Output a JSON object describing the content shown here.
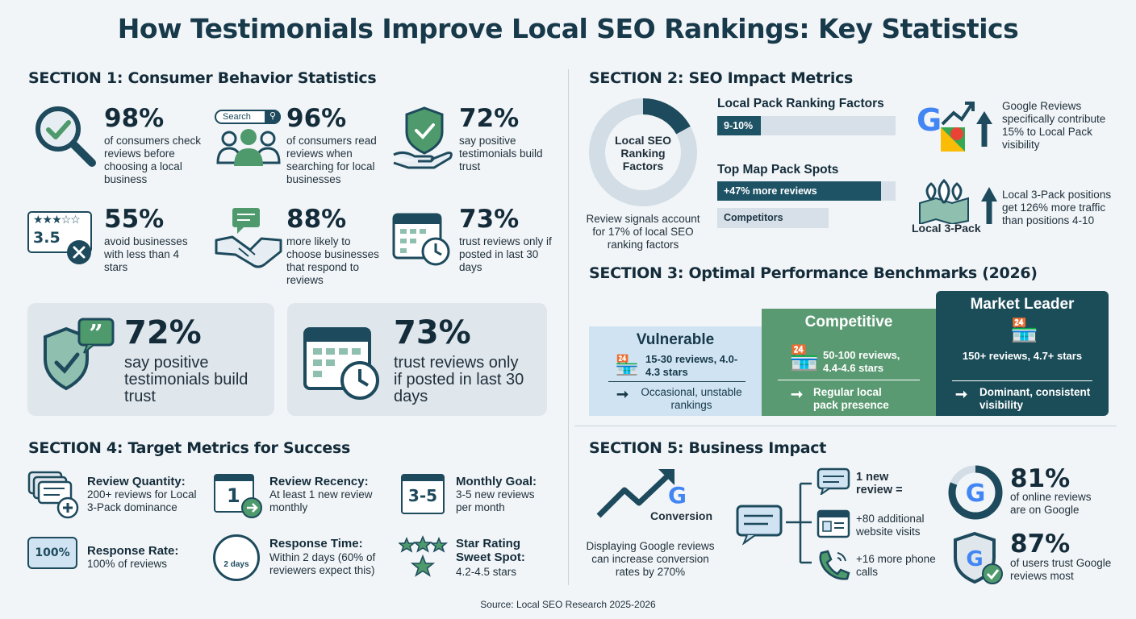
{
  "title": "How Testimonials Improve Local SEO Rankings: Key Statistics",
  "section1": {
    "heading": "SECTION 1: Consumer Behavior Statistics",
    "search_label": "Search",
    "rating_label": "3.5",
    "stats": [
      {
        "value": "98%",
        "desc": "of consumers check reviews before choosing a local business"
      },
      {
        "value": "96%",
        "desc": "of consumers read reviews when searching for local businesses"
      },
      {
        "value": "72%",
        "desc": "say positive testimonials build trust"
      },
      {
        "value": "55%",
        "desc": "avoid businesses with less than 4 stars"
      },
      {
        "value": "88%",
        "desc": "more likely to choose businesses that respond to reviews"
      },
      {
        "value": "73%",
        "desc": "trust reviews only if posted in last 30 days"
      }
    ],
    "cards": [
      {
        "value": "72%",
        "desc": "say positive testimonials build trust"
      },
      {
        "value": "73%",
        "desc": "trust reviews only if posted in last 30 days"
      }
    ]
  },
  "section2": {
    "heading": "SECTION 2: SEO Impact Metrics",
    "donut_label": "Local SEO Ranking Factors",
    "donut_fraction": 0.17,
    "donut_caption": "Review signals account for 17% of local SEO ranking factors",
    "local_pack_title": "Local Pack Ranking Factors",
    "local_pack_bar": {
      "label": "9-10%",
      "fraction": 0.1
    },
    "map_pack_title": "Top Map Pack Spots",
    "map_pack_bars": [
      {
        "label": "+47% more reviews",
        "fraction": 1.47
      },
      {
        "label": "Competitors",
        "fraction": 1.0
      }
    ],
    "google_reviews_text": "Google Reviews specifically contribute 15% to Local Pack visibility",
    "local3pack_label": "Local 3-Pack",
    "local3pack_text": "Local 3-Pack positions get 126% more traffic than positions 4-10"
  },
  "section3": {
    "heading": "SECTION 3: Optimal Performance Benchmarks (2026)",
    "tiers": [
      {
        "name": "Vulnerable",
        "detail": "15-30 reviews, 4.0-4.3 stars",
        "result": "Occasional, unstable rankings",
        "color": "#cfe3f2"
      },
      {
        "name": "Competitive",
        "detail": "50-100 reviews, 4.4-4.6 stars",
        "result": "Regular local pack presence",
        "color": "#5a9a72"
      },
      {
        "name": "Market Leader",
        "detail": "150+ reviews, 4.7+ stars",
        "result": "Dominant, consistent visibility",
        "color": "#1b4d59"
      }
    ]
  },
  "section4": {
    "heading": "SECTION 4: Target Metrics for Success",
    "calendar_num": "1",
    "range_label": "3-5",
    "percent_badge": "100%",
    "clock_label": "2 days",
    "items": [
      {
        "label": "Review Quantity:",
        "desc": "200+ reviews for Local 3-Pack dominance"
      },
      {
        "label": "Review Recency:",
        "desc": "At least 1 new review monthly"
      },
      {
        "label": "Monthly Goal:",
        "desc": "3-5 new reviews per month"
      },
      {
        "label": "Response Rate:",
        "desc": "100% of reviews"
      },
      {
        "label": "Response Time:",
        "desc": "Within 2 days (60% of reviewers expect this)"
      },
      {
        "label": "Star Rating Sweet Spot:",
        "desc": "4.2-4.5 stars"
      }
    ]
  },
  "section5": {
    "heading": "SECTION 5: Business Impact",
    "conversion_label": "Conversion",
    "conversion_text": "Displaying Google reviews can increase conversion rates by 270%",
    "flow": [
      {
        "text": "1 new review ="
      },
      {
        "text": "+80 additional website visits"
      },
      {
        "text": "+16 more phone calls"
      }
    ],
    "stat1": {
      "value": "81%",
      "desc": "of online reviews are on Google"
    },
    "stat2": {
      "value": "87%",
      "desc": "of users trust Google reviews most"
    }
  },
  "source": "Source: Local SEO Research 2025-2026",
  "colors": {
    "navy": "#1d4a5c",
    "green": "#4e9a6c",
    "light_blue": "#cfe3f2",
    "google_blue": "#4285f4",
    "google_red": "#ea4335",
    "google_yellow": "#fbbc05",
    "google_green": "#34a853"
  }
}
